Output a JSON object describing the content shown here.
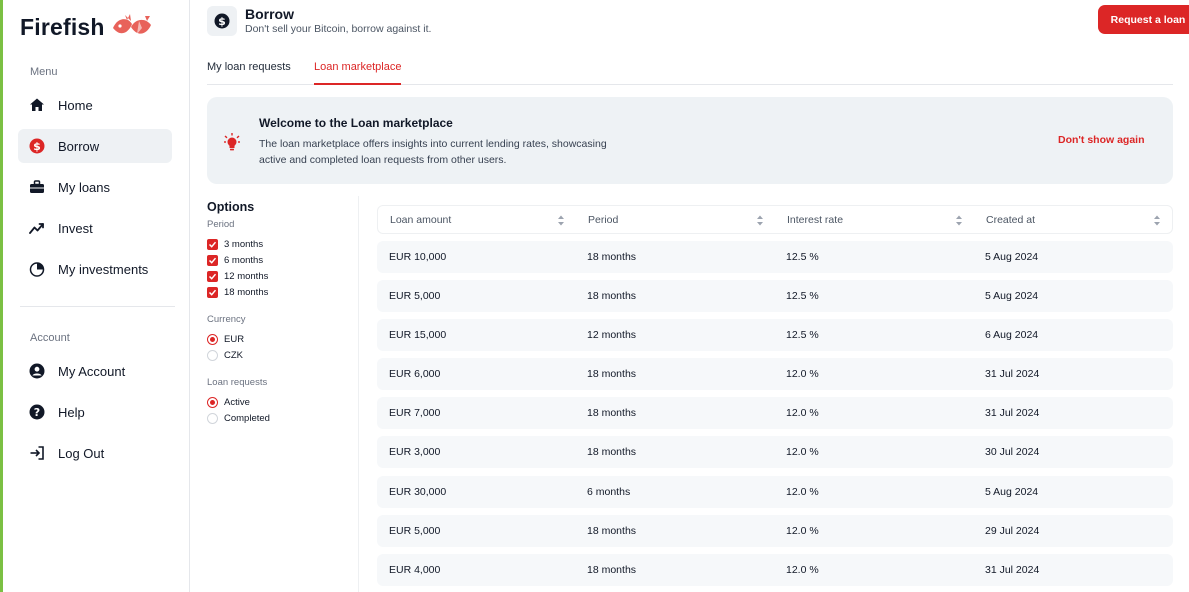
{
  "app": {
    "logo_text": "Firefish"
  },
  "sidebar": {
    "menu_label": "Menu",
    "account_label": "Account",
    "menu_items": [
      {
        "label": "Home",
        "icon": "home-icon"
      },
      {
        "label": "Borrow",
        "icon": "dollar-circle-icon"
      },
      {
        "label": "My loans",
        "icon": "briefcase-icon"
      },
      {
        "label": "Invest",
        "icon": "trending-up-icon"
      },
      {
        "label": "My investments",
        "icon": "pie-chart-icon"
      }
    ],
    "account_items": [
      {
        "label": "My Account",
        "icon": "user-circle-icon"
      },
      {
        "label": "Help",
        "icon": "help-circle-icon"
      },
      {
        "label": "Log Out",
        "icon": "logout-icon"
      }
    ]
  },
  "header": {
    "title": "Borrow",
    "subtitle": "Don't sell your Bitcoin, borrow against it.",
    "request_button": "Request a loan"
  },
  "tabs": [
    {
      "label": "My loan requests",
      "active": false
    },
    {
      "label": "Loan marketplace",
      "active": true
    }
  ],
  "banner": {
    "title": "Welcome to the Loan marketplace",
    "text": "The loan marketplace offers insights into current lending rates, showcasing active and completed loan requests from other users.",
    "dismiss": "Don't show again",
    "icon": "lightbulb-icon"
  },
  "options": {
    "title": "Options",
    "period_label": "Period",
    "periods": [
      {
        "label": "3 months",
        "checked": true
      },
      {
        "label": "6 months",
        "checked": true
      },
      {
        "label": "12 months",
        "checked": true
      },
      {
        "label": "18 months",
        "checked": true
      }
    ],
    "currency_label": "Currency",
    "currencies": [
      {
        "label": "EUR",
        "selected": true
      },
      {
        "label": "CZK",
        "selected": false
      }
    ],
    "requests_label": "Loan requests",
    "requests": [
      {
        "label": "Active",
        "selected": true
      },
      {
        "label": "Completed",
        "selected": false
      }
    ]
  },
  "table": {
    "columns": [
      "Loan amount",
      "Period",
      "Interest rate",
      "Created at"
    ],
    "rows": [
      [
        "EUR 10,000",
        "18 months",
        "12.5 %",
        "5 Aug 2024"
      ],
      [
        "EUR 5,000",
        "18 months",
        "12.5 %",
        "5 Aug 2024"
      ],
      [
        "EUR 15,000",
        "12 months",
        "12.5 %",
        "6 Aug 2024"
      ],
      [
        "EUR 6,000",
        "18 months",
        "12.0 %",
        "31 Jul 2024"
      ],
      [
        "EUR 7,000",
        "18 months",
        "12.0 %",
        "31 Jul 2024"
      ],
      [
        "EUR 3,000",
        "18 months",
        "12.0 %",
        "30 Jul 2024"
      ],
      [
        "EUR 30,000",
        "6 months",
        "12.0 %",
        "5 Aug 2024"
      ],
      [
        "EUR 5,000",
        "18 months",
        "12.0 %",
        "29 Jul 2024"
      ],
      [
        "EUR 4,000",
        "18 months",
        "12.0 %",
        "31 Jul 2024"
      ]
    ]
  },
  "colors": {
    "accent": "#dc2626",
    "sidebar_active_bg": "#eef1f4",
    "left_accent": "#7bc043"
  }
}
